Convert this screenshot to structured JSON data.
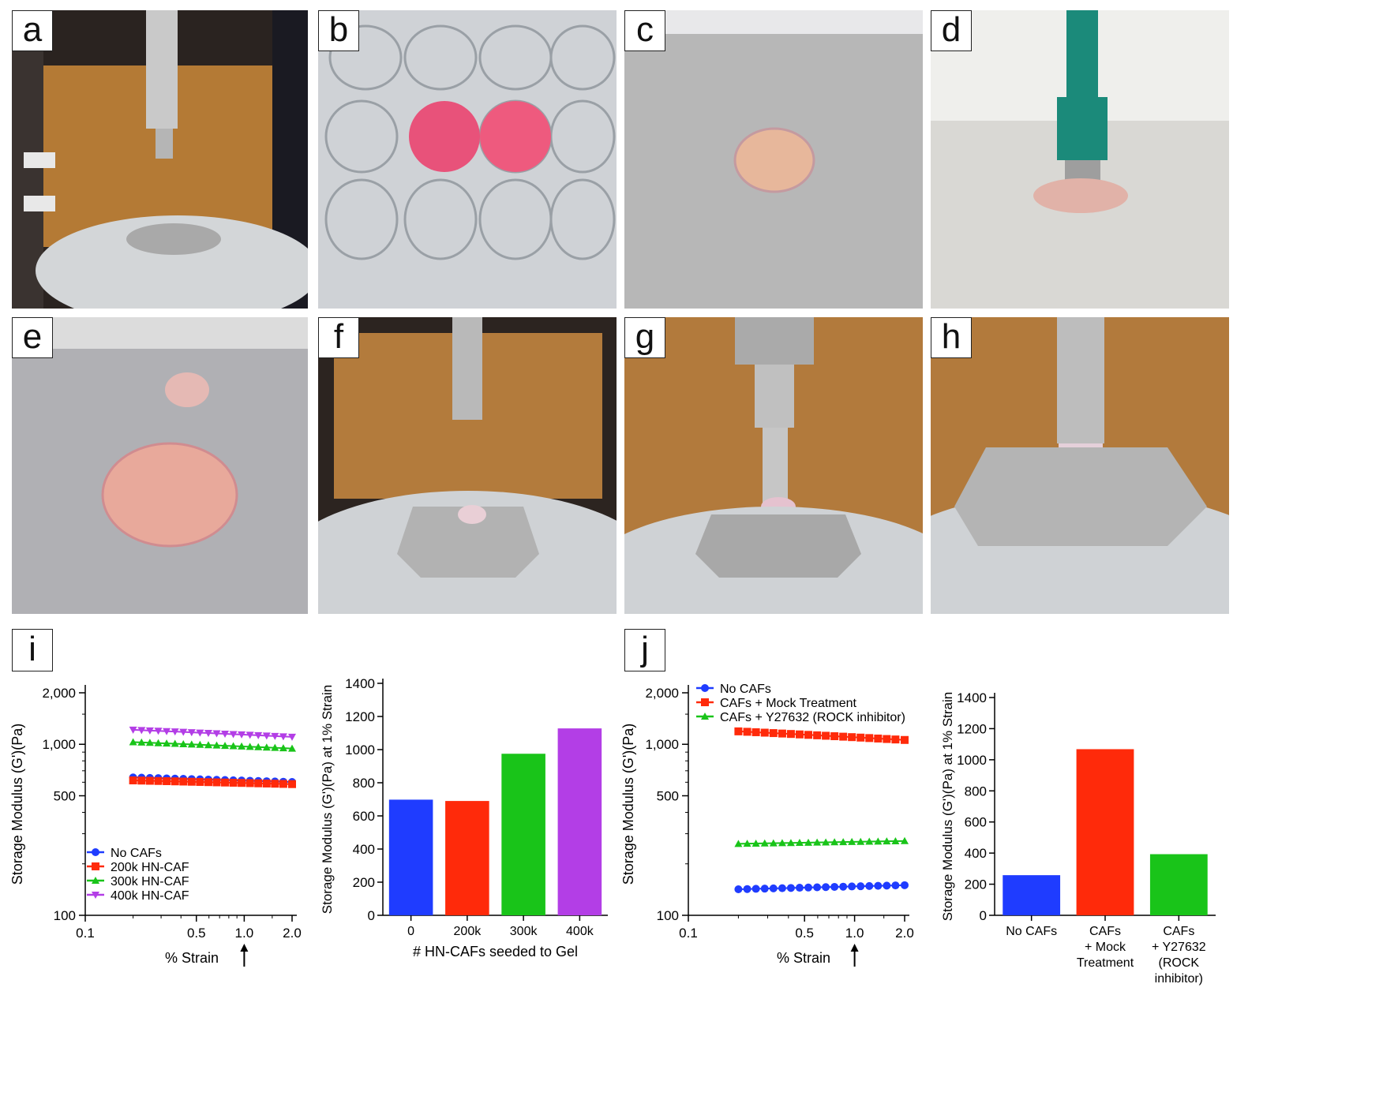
{
  "photo_panels": [
    {
      "label": "a"
    },
    {
      "label": "b"
    },
    {
      "label": "c"
    },
    {
      "label": "d"
    },
    {
      "label": "e"
    },
    {
      "label": "f"
    },
    {
      "label": "g"
    },
    {
      "label": "h"
    }
  ],
  "colors": {
    "blue": "#1f3cff",
    "red": "#ff2a0a",
    "green": "#19c419",
    "purple": "#b33ee6"
  },
  "chart_data": [
    {
      "id": "i-line",
      "panel_label": "i",
      "type": "line",
      "ylabel": "Storage Modulus (G')(Pa)",
      "xlabel": "% Strain",
      "x_scale": "log",
      "y_scale": "log",
      "xlim": [
        0.1,
        2.0
      ],
      "ylim": [
        100,
        2000
      ],
      "x_ticks": [
        "0.1",
        "0.5",
        "1.0",
        "2.0"
      ],
      "y_ticks": [
        "100",
        "500",
        "1,000",
        "2,000"
      ],
      "x": [
        0.2,
        0.226,
        0.255,
        0.288,
        0.325,
        0.367,
        0.414,
        0.467,
        0.527,
        0.595,
        0.671,
        0.757,
        0.854,
        0.963,
        1.087,
        1.226,
        1.384,
        1.561,
        1.762,
        2.0
      ],
      "series": [
        {
          "name": "No CAFs",
          "marker": "circle",
          "start": 640,
          "end": 602
        },
        {
          "name": "200k HN-CAF",
          "marker": "square",
          "start": 615,
          "end": 585
        },
        {
          "name": "300k HN-CAF",
          "marker": "triangle-up",
          "start": 1030,
          "end": 945
        },
        {
          "name": "400k HN-CAF",
          "marker": "triangle-down",
          "start": 1215,
          "end": 1105
        }
      ],
      "legend_position": "bottom-left",
      "annotation": "arrow at 1.0"
    },
    {
      "id": "i-bar",
      "type": "bar",
      "ylabel": "Storage Modulus (G')(Pa) at 1% Strain",
      "xlabel": "# HN-CAFs seeded to Gel",
      "categories": [
        "0",
        "200k",
        "300k",
        "400k"
      ],
      "values": [
        698,
        690,
        975,
        1128
      ],
      "ylim": [
        0,
        1400
      ],
      "y_ticks": [
        "0",
        "200",
        "400",
        "600",
        "800",
        "1000",
        "1200",
        "1400"
      ]
    },
    {
      "id": "j-line",
      "panel_label": "j",
      "type": "line",
      "ylabel": "Storage Modulus (G')(Pa)",
      "xlabel": "% Strain",
      "x_scale": "log",
      "y_scale": "log",
      "xlim": [
        0.1,
        2.0
      ],
      "ylim": [
        100,
        2000
      ],
      "x_ticks": [
        "0.1",
        "0.5",
        "1.0",
        "2.0"
      ],
      "y_ticks": [
        "100",
        "500",
        "1,000",
        "2,000"
      ],
      "x": [
        0.2,
        0.226,
        0.255,
        0.288,
        0.325,
        0.367,
        0.414,
        0.467,
        0.527,
        0.595,
        0.671,
        0.757,
        0.854,
        0.963,
        1.087,
        1.226,
        1.384,
        1.561,
        1.762,
        2.0
      ],
      "series": [
        {
          "name": "No CAFs",
          "marker": "circle",
          "start": 142,
          "end": 150
        },
        {
          "name": "CAFs + Mock Treatment",
          "marker": "square",
          "start": 1190,
          "end": 1060
        },
        {
          "name": "CAFs  + Y27632  (ROCK inhibitor)",
          "marker": "triangle-up",
          "start": 262,
          "end": 272
        }
      ],
      "legend_position": "top-left",
      "annotation": "arrow at 1.0"
    },
    {
      "id": "j-bar",
      "type": "bar",
      "ylabel": "Storage Modulus (G')(Pa) at 1% Strain",
      "xlabel": "",
      "categories": [
        [
          "No CAFs"
        ],
        [
          "CAFs",
          "+ Mock",
          "Treatment"
        ],
        [
          "CAFs",
          "+ Y27632",
          "(ROCK",
          "inhibitor)"
        ]
      ],
      "values": [
        258,
        1068,
        393
      ],
      "ylim": [
        0,
        1400
      ],
      "y_ticks": [
        "0",
        "200",
        "400",
        "600",
        "800",
        "1000",
        "1200",
        "1400"
      ]
    }
  ]
}
